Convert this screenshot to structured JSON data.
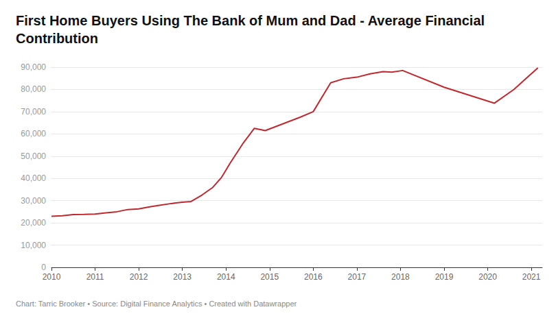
{
  "chart_data": {
    "type": "line",
    "title": "First Home Buyers Using The Bank of Mum and Dad - Average Financial Contribution",
    "source": "Chart: Tarric Brooker • Source: Digital Finance Analytics • Created with Datawrapper",
    "color": "#c1272d",
    "grid": true,
    "x": [
      2010.0,
      2010.25,
      2010.5,
      2010.75,
      2011.0,
      2011.25,
      2011.5,
      2011.75,
      2012.0,
      2012.25,
      2012.5,
      2012.75,
      2013.0,
      2013.2,
      2013.45,
      2013.7,
      2013.9,
      2014.1,
      2014.4,
      2014.65,
      2014.9,
      2015.3,
      2015.7,
      2016.0,
      2016.4,
      2016.7,
      2017.0,
      2017.3,
      2017.6,
      2017.8,
      2018.05,
      2019.0,
      2020.15,
      2020.6,
      2021.15
    ],
    "values": [
      23000,
      23200,
      23700,
      23800,
      24000,
      24500,
      25000,
      26000,
      26300,
      27200,
      28000,
      28700,
      29300,
      29600,
      32500,
      36000,
      40500,
      47000,
      56000,
      62500,
      61500,
      64500,
      67500,
      70000,
      83000,
      84800,
      85500,
      87000,
      88000,
      87800,
      88500,
      81000,
      73800,
      80000,
      89700
    ],
    "xlim": [
      2010,
      2021.25
    ],
    "xticks": [
      2010,
      2011,
      2012,
      2013,
      2014,
      2015,
      2016,
      2017,
      2018,
      2019,
      2020,
      2021
    ],
    "ylim": [
      0,
      90000
    ],
    "yticks": [
      0,
      {
        "value": 10000,
        "label": "10,000"
      },
      {
        "value": 20000,
        "label": "20,000"
      },
      {
        "value": 30000,
        "label": "30,000"
      },
      {
        "value": 40000,
        "label": "40,000"
      },
      {
        "value": 50000,
        "label": "50,000"
      },
      {
        "value": 60000,
        "label": "60,000"
      },
      {
        "value": 70000,
        "label": "70,000"
      },
      {
        "value": 80000,
        "label": "80,000"
      },
      {
        "value": 90000,
        "label": "90,000"
      }
    ]
  }
}
